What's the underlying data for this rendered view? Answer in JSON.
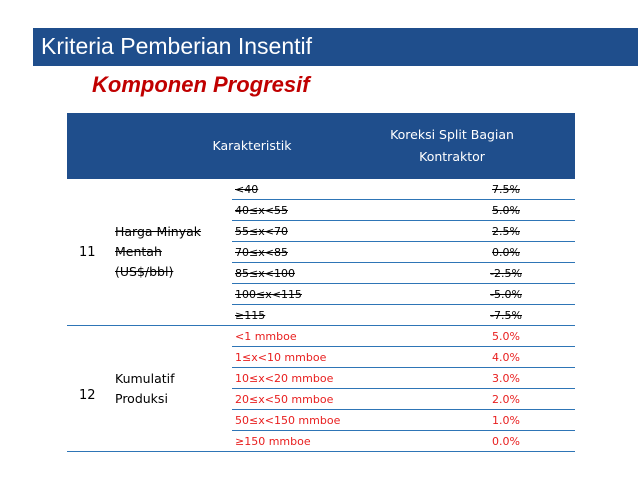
{
  "header": {
    "title": "Kriteria Pemberian Insentif"
  },
  "subtitle": "Komponen Progresif",
  "table": {
    "col_header_1": "Karakteristik",
    "col_header_2_line1": "Koreksi Split Bagian",
    "col_header_2_line2": "Kontraktor",
    "groups": [
      {
        "number": "11",
        "label_line1": "Harga Minyak",
        "label_line2": "Mentah",
        "label_line3": "(US$/bbl)",
        "rows": [
          {
            "range": "<40",
            "value": "7.5%"
          },
          {
            "range": "40≤x<55",
            "value": "5.0%"
          },
          {
            "range": "55≤x<70",
            "value": "2.5%"
          },
          {
            "range": "70≤x<85",
            "value": "0.0%"
          },
          {
            "range": "85≤x<100",
            "value": "-2.5%"
          },
          {
            "range": "100≤x<115",
            "value": "-5.0%"
          },
          {
            "range": "≥115",
            "value": "-7.5%"
          }
        ]
      },
      {
        "number": "12",
        "label_line1": "Kumulatif",
        "label_line2": "Produksi",
        "rows": [
          {
            "range": "<1 mmboe",
            "value": "5.0%"
          },
          {
            "range": "1≤x<10 mmboe",
            "value": "4.0%"
          },
          {
            "range": "10≤x<20 mmboe",
            "value": "3.0%"
          },
          {
            "range": "20≤x<50 mmboe",
            "value": "2.0%"
          },
          {
            "range": "50≤x<150 mmboe",
            "value": "1.0%"
          },
          {
            "range": "≥150 mmboe",
            "value": "0.0%"
          }
        ]
      }
    ]
  },
  "colors": {
    "header_bg": "#1f4e8c",
    "accent_red": "#c00000",
    "row_red": "#e81e1e",
    "rule": "#2e75b6"
  }
}
